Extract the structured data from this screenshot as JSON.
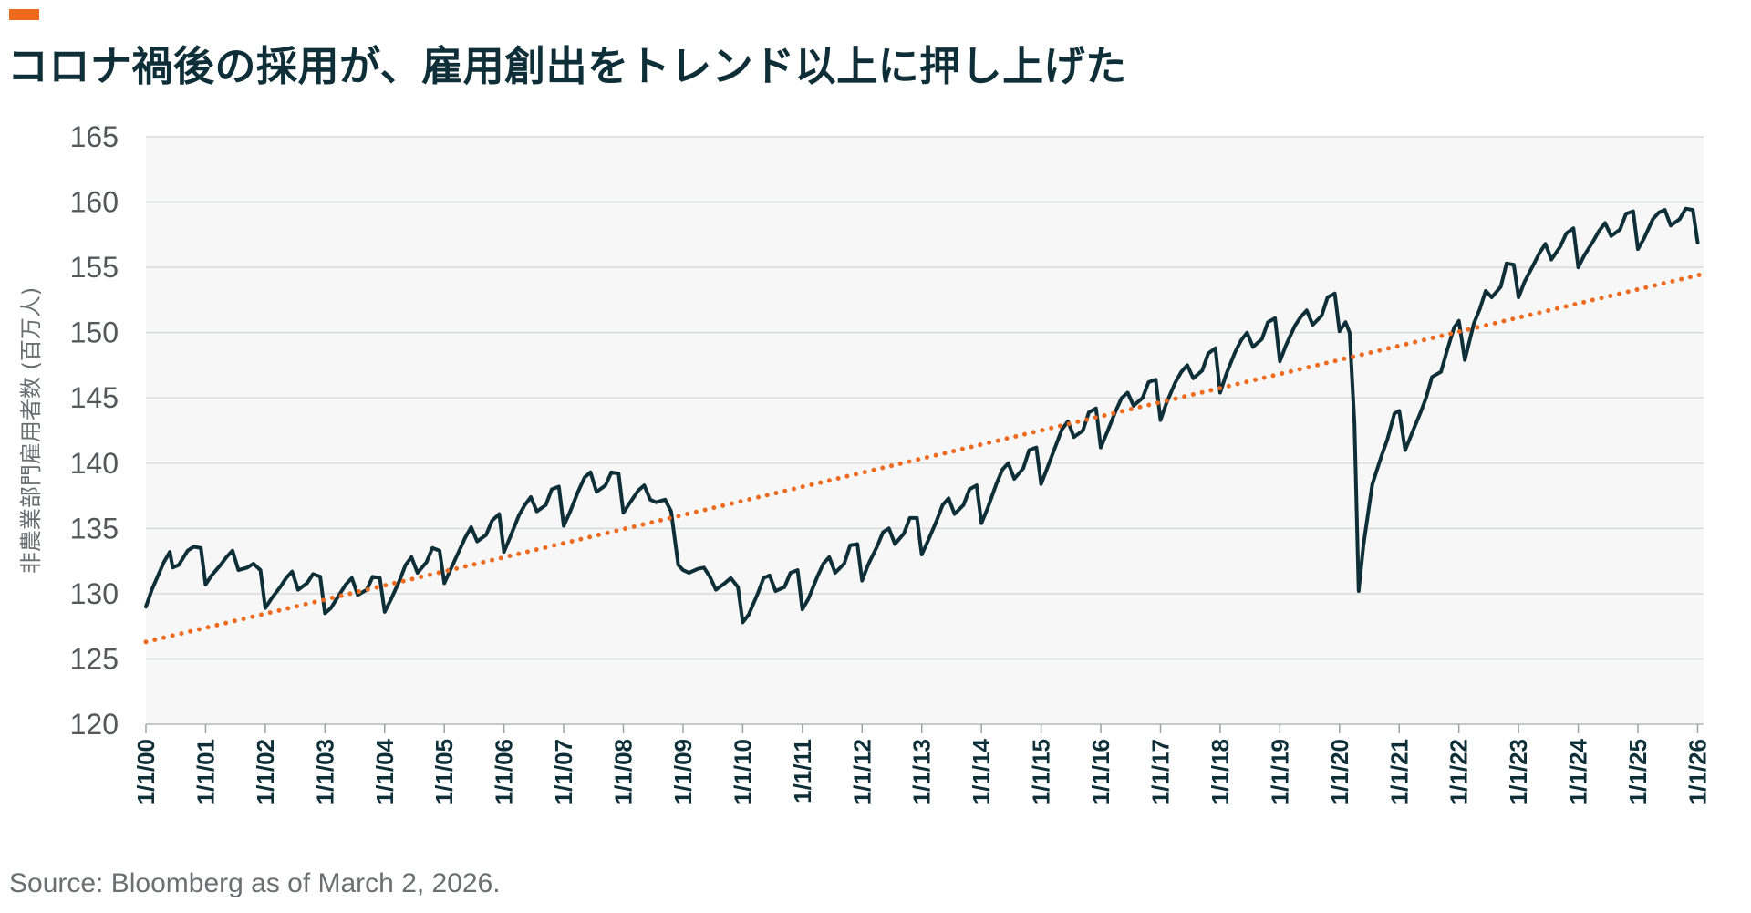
{
  "title": "コロナ禍後の採用が、雇用創出をトレンド以上に押し上げた",
  "source": "Source: Bloomberg as of March 2, 2026.",
  "colors": {
    "accent": "#ee6a1f",
    "line": "#0f2f38",
    "trend": "#ee6a1f",
    "plot_bg": "#f6f7f6",
    "grid": "#d9dbdb",
    "axis_text": "#55585a"
  },
  "chart_data": {
    "type": "line",
    "title": "コロナ禍後の採用が、雇用創出をトレンド以上に押し上げた",
    "xlabel": "",
    "ylabel": "非農業部門雇用者数 (百万人)",
    "ylim": [
      120,
      165
    ],
    "yticks": [
      120,
      125,
      130,
      135,
      140,
      145,
      150,
      155,
      160,
      165
    ],
    "xlim": [
      2000,
      2026.1
    ],
    "xticks": [
      {
        "year": 2000,
        "label": "1/1/00"
      },
      {
        "year": 2001,
        "label": "1/1/01"
      },
      {
        "year": 2002,
        "label": "1/1/02"
      },
      {
        "year": 2003,
        "label": "1/1/03"
      },
      {
        "year": 2004,
        "label": "1/1/04"
      },
      {
        "year": 2005,
        "label": "1/1/05"
      },
      {
        "year": 2006,
        "label": "1/1/06"
      },
      {
        "year": 2007,
        "label": "1/1/07"
      },
      {
        "year": 2008,
        "label": "1/1/08"
      },
      {
        "year": 2009,
        "label": "1/1/09"
      },
      {
        "year": 2010,
        "label": "1/1/10"
      },
      {
        "year": 2011,
        "label": "1/1/11"
      },
      {
        "year": 2012,
        "label": "1/1/12"
      },
      {
        "year": 2013,
        "label": "1/1/13"
      },
      {
        "year": 2014,
        "label": "1/1/14"
      },
      {
        "year": 2015,
        "label": "1/1/15"
      },
      {
        "year": 2016,
        "label": "1/1/16"
      },
      {
        "year": 2017,
        "label": "1/1/17"
      },
      {
        "year": 2018,
        "label": "1/1/18"
      },
      {
        "year": 2019,
        "label": "1/1/19"
      },
      {
        "year": 2020,
        "label": "1/1/20"
      },
      {
        "year": 2021,
        "label": "1/1/21"
      },
      {
        "year": 2022,
        "label": "1/1/22"
      },
      {
        "year": 2023,
        "label": "1/1/23"
      },
      {
        "year": 2024,
        "label": "1/1/24"
      },
      {
        "year": 2025,
        "label": "1/1/25"
      },
      {
        "year": 2026,
        "label": "1/1/26"
      }
    ],
    "grid": true,
    "series": [
      {
        "name": "非農業部門雇用者数",
        "style": "solid",
        "x": [
          2000.0,
          2000.1,
          2000.3,
          2000.4,
          2000.45,
          2000.55,
          2000.7,
          2000.8,
          2000.92,
          2001.0,
          2001.1,
          2001.25,
          2001.35,
          2001.45,
          2001.55,
          2001.7,
          2001.8,
          2001.92,
          2002.0,
          2002.1,
          2002.25,
          2002.35,
          2002.45,
          2002.55,
          2002.7,
          2002.8,
          2002.92,
          2003.0,
          2003.1,
          2003.25,
          2003.35,
          2003.45,
          2003.55,
          2003.7,
          2003.8,
          2003.92,
          2004.0,
          2004.1,
          2004.25,
          2004.35,
          2004.45,
          2004.55,
          2004.7,
          2004.8,
          2004.92,
          2005.0,
          2005.1,
          2005.25,
          2005.35,
          2005.45,
          2005.55,
          2005.7,
          2005.8,
          2005.92,
          2006.0,
          2006.1,
          2006.25,
          2006.35,
          2006.45,
          2006.55,
          2006.7,
          2006.8,
          2006.92,
          2007.0,
          2007.1,
          2007.25,
          2007.35,
          2007.45,
          2007.55,
          2007.7,
          2007.8,
          2007.92,
          2008.0,
          2008.1,
          2008.25,
          2008.35,
          2008.45,
          2008.55,
          2008.7,
          2008.8,
          2008.92,
          2009.0,
          2009.1,
          2009.25,
          2009.35,
          2009.45,
          2009.55,
          2009.7,
          2009.8,
          2009.92,
          2010.0,
          2010.1,
          2010.25,
          2010.35,
          2010.45,
          2010.55,
          2010.7,
          2010.8,
          2010.92,
          2011.0,
          2011.1,
          2011.25,
          2011.35,
          2011.45,
          2011.55,
          2011.7,
          2011.8,
          2011.92,
          2012.0,
          2012.1,
          2012.25,
          2012.35,
          2012.45,
          2012.55,
          2012.7,
          2012.8,
          2012.92,
          2013.0,
          2013.1,
          2013.25,
          2013.35,
          2013.45,
          2013.55,
          2013.7,
          2013.8,
          2013.92,
          2014.0,
          2014.1,
          2014.25,
          2014.35,
          2014.45,
          2014.55,
          2014.7,
          2014.8,
          2014.92,
          2015.0,
          2015.1,
          2015.25,
          2015.35,
          2015.45,
          2015.55,
          2015.7,
          2015.8,
          2015.92,
          2016.0,
          2016.1,
          2016.25,
          2016.35,
          2016.45,
          2016.55,
          2016.7,
          2016.8,
          2016.92,
          2017.0,
          2017.1,
          2017.25,
          2017.35,
          2017.45,
          2017.55,
          2017.7,
          2017.8,
          2017.92,
          2018.0,
          2018.1,
          2018.25,
          2018.35,
          2018.45,
          2018.55,
          2018.7,
          2018.8,
          2018.92,
          2019.0,
          2019.1,
          2019.25,
          2019.35,
          2019.45,
          2019.55,
          2019.7,
          2019.8,
          2019.92,
          2020.0,
          2020.1,
          2020.17,
          2020.25,
          2020.32,
          2020.4,
          2020.55,
          2020.7,
          2020.8,
          2020.92,
          2021.0,
          2021.1,
          2021.25,
          2021.35,
          2021.45,
          2021.55,
          2021.7,
          2021.8,
          2021.92,
          2022.0,
          2022.1,
          2022.25,
          2022.35,
          2022.45,
          2022.55,
          2022.7,
          2022.8,
          2022.92,
          2023.0,
          2023.1,
          2023.25,
          2023.35,
          2023.45,
          2023.55,
          2023.7,
          2023.8,
          2023.92,
          2024.0,
          2024.1,
          2024.25,
          2024.35,
          2024.45,
          2024.55,
          2024.7,
          2024.8,
          2024.92,
          2025.0,
          2025.1,
          2025.25,
          2025.35,
          2025.45,
          2025.55,
          2025.7,
          2025.8,
          2025.92,
          2026.0
        ],
        "y": [
          129.0,
          130.3,
          132.4,
          133.2,
          132.0,
          132.2,
          133.3,
          133.6,
          133.5,
          130.7,
          131.4,
          132.2,
          132.8,
          133.3,
          131.8,
          132.0,
          132.3,
          131.8,
          128.9,
          129.6,
          130.5,
          131.2,
          131.7,
          130.3,
          130.8,
          131.5,
          131.3,
          128.5,
          128.9,
          130.0,
          130.7,
          131.2,
          129.9,
          130.3,
          131.3,
          131.2,
          128.6,
          129.5,
          131.0,
          132.2,
          132.8,
          131.6,
          132.4,
          133.5,
          133.3,
          130.8,
          131.8,
          133.3,
          134.3,
          135.1,
          134.0,
          134.5,
          135.6,
          136.1,
          133.2,
          134.3,
          136.0,
          136.8,
          137.4,
          136.3,
          136.8,
          138.0,
          138.2,
          135.2,
          136.2,
          137.9,
          138.9,
          139.3,
          137.8,
          138.3,
          139.3,
          139.2,
          136.2,
          136.9,
          137.9,
          138.3,
          137.2,
          137.0,
          137.2,
          136.3,
          132.2,
          131.8,
          131.6,
          131.9,
          132.0,
          131.3,
          130.3,
          130.8,
          131.2,
          130.5,
          127.8,
          128.4,
          130.0,
          131.2,
          131.4,
          130.2,
          130.5,
          131.6,
          131.8,
          128.8,
          129.6,
          131.3,
          132.3,
          132.8,
          131.6,
          132.3,
          133.7,
          133.8,
          131.0,
          132.2,
          133.6,
          134.7,
          135.0,
          133.8,
          134.6,
          135.8,
          135.8,
          133.0,
          134.0,
          135.6,
          136.8,
          137.3,
          136.1,
          136.8,
          138.0,
          138.3,
          135.4,
          136.5,
          138.4,
          139.5,
          140.0,
          138.8,
          139.6,
          141.0,
          141.2,
          138.4,
          139.6,
          141.4,
          142.6,
          143.2,
          142.0,
          142.5,
          143.9,
          144.2,
          141.2,
          142.3,
          144.0,
          145.0,
          145.4,
          144.4,
          145.0,
          146.2,
          146.4,
          143.3,
          144.6,
          146.2,
          147.0,
          147.5,
          146.5,
          147.1,
          148.4,
          148.8,
          145.4,
          146.8,
          148.5,
          149.4,
          150.0,
          148.9,
          149.5,
          150.8,
          151.1,
          147.8,
          149.0,
          150.5,
          151.2,
          151.7,
          150.6,
          151.3,
          152.7,
          153.0,
          150.1,
          150.8,
          150.0,
          143.0,
          130.2,
          133.7,
          138.4,
          140.5,
          141.8,
          143.8,
          144.0,
          141.0,
          142.7,
          143.8,
          145.0,
          146.6,
          147.0,
          148.6,
          150.4,
          150.9,
          147.9,
          150.7,
          151.8,
          153.2,
          152.7,
          153.5,
          155.3,
          155.2,
          152.7,
          153.9,
          155.2,
          156.1,
          156.8,
          155.6,
          156.6,
          157.6,
          158.0,
          155.0,
          155.9,
          157.0,
          157.8,
          158.4,
          157.4,
          157.9,
          159.1,
          159.3,
          156.4,
          157.2,
          158.7,
          159.2,
          159.4,
          158.2,
          158.7,
          159.5,
          159.4,
          156.9
        ]
      },
      {
        "name": "トレンド",
        "style": "dotted",
        "x": [
          2000.0,
          2026.1
        ],
        "y": [
          126.3,
          154.5
        ]
      }
    ]
  }
}
